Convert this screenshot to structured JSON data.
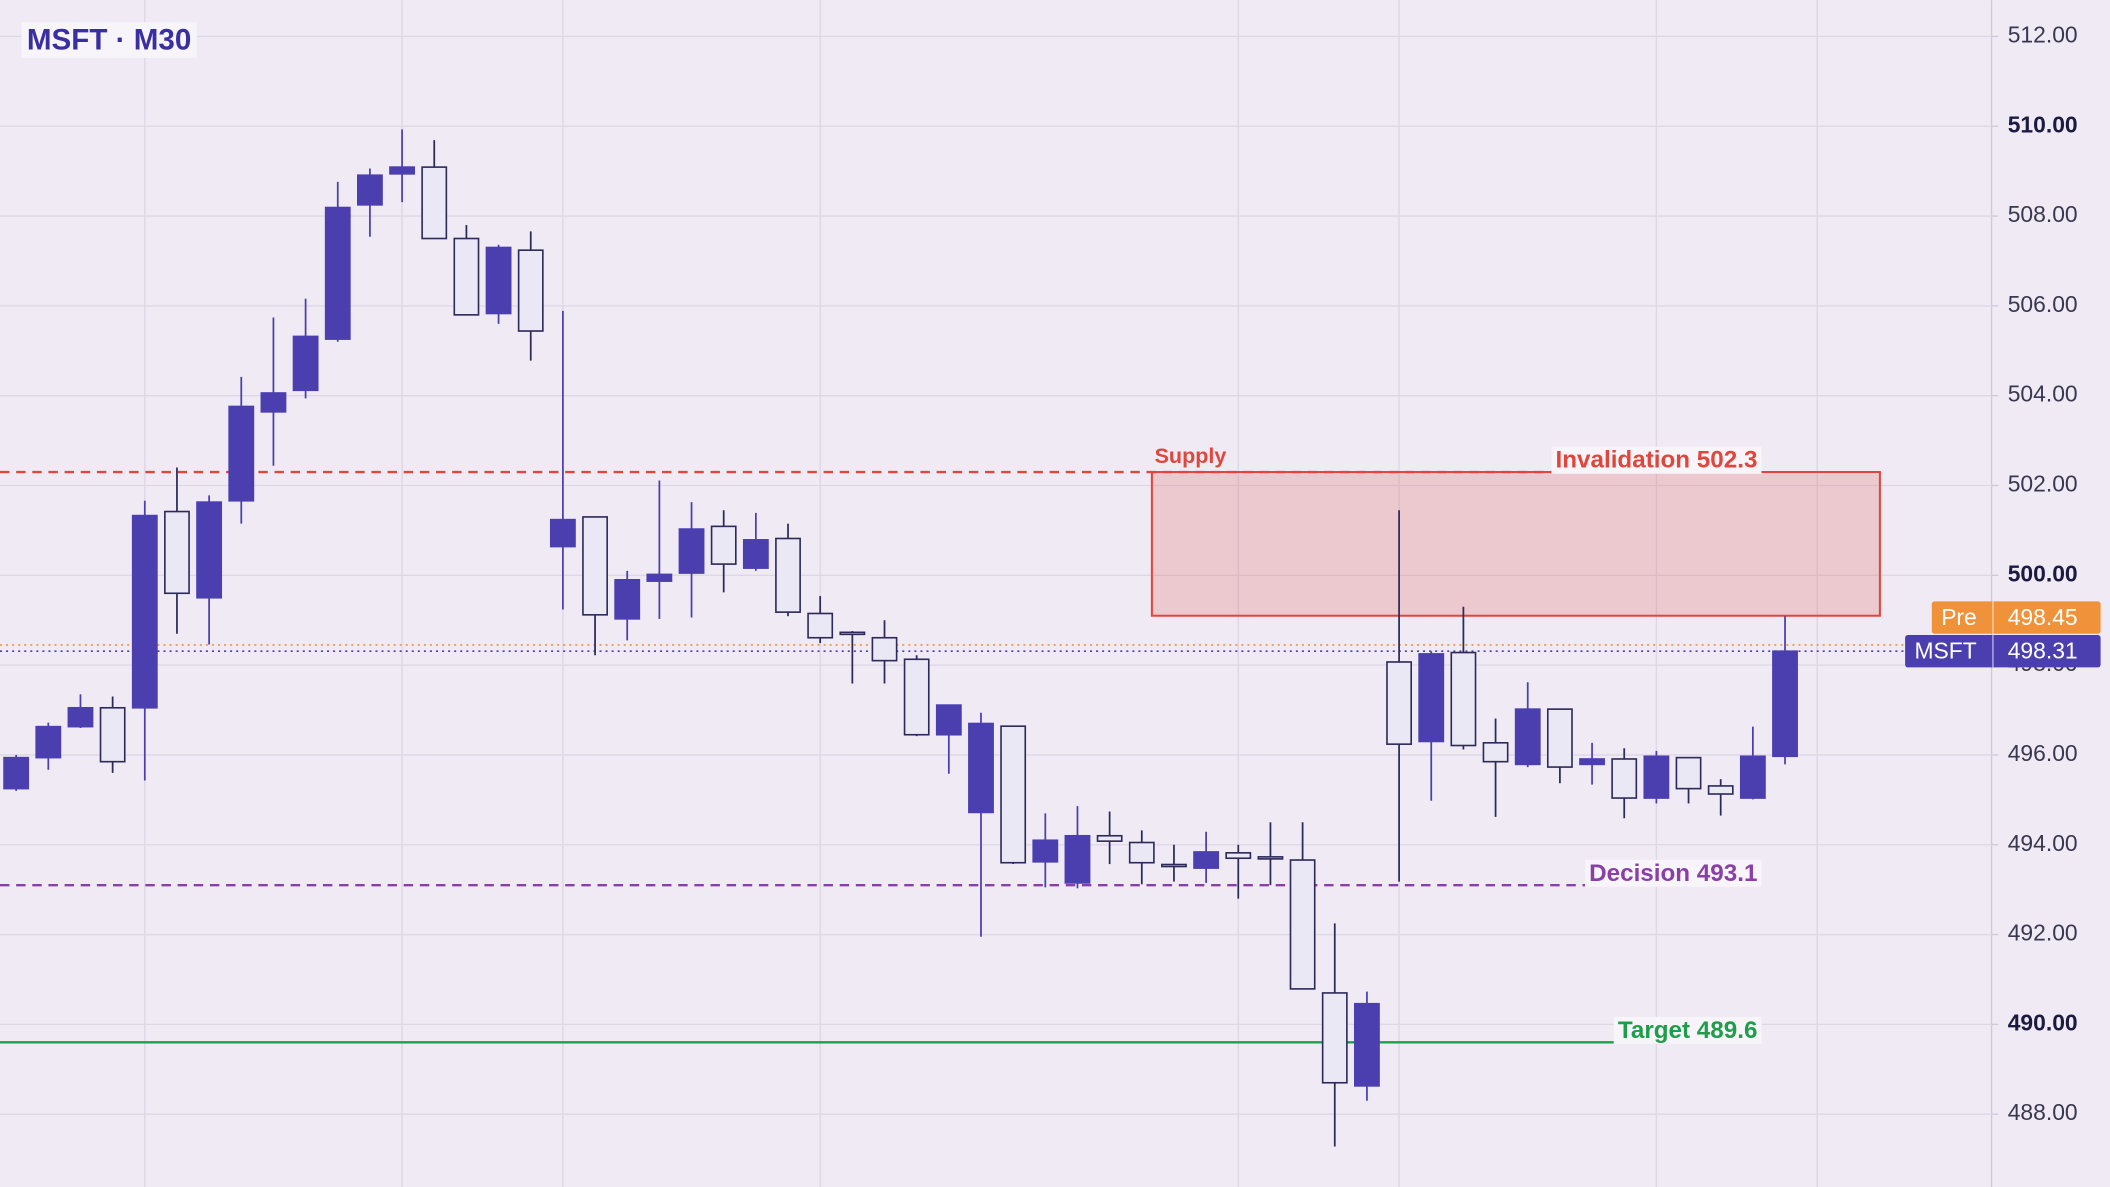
{
  "chart_data": {
    "type": "candlestick",
    "title": "MSFT · M30",
    "candle_up_color": "#4b3fb0",
    "candle_down_color": "#ebe8f5",
    "open": [
      495.25,
      495.94,
      496.63,
      497.05,
      497.05,
      501.42,
      499.5,
      501.66,
      503.64,
      504.12,
      505.26,
      508.25,
      508.94,
      509.09,
      507.5,
      505.83,
      507.24,
      500.64,
      501.3,
      499.03,
      499.87,
      500.05,
      501.09,
      500.16,
      500.82,
      499.15,
      498.73,
      498.61,
      498.13,
      496.45,
      494.72,
      496.64,
      493.62,
      493.15,
      494.2,
      494.05,
      493.56,
      493.48,
      493.82,
      493.73,
      493.66,
      490.7,
      488.63,
      498.07,
      496.3,
      498.28,
      496.27,
      495.79,
      497.02,
      495.79,
      495.91,
      495.04,
      495.94,
      495.31,
      495.04,
      495.97
    ],
    "high": [
      496.0,
      496.72,
      497.35,
      497.3,
      501.66,
      502.4,
      501.78,
      504.42,
      505.74,
      506.16,
      508.76,
      509.06,
      509.93,
      509.69,
      507.8,
      507.36,
      507.66,
      505.89,
      501.3,
      500.1,
      502.11,
      501.63,
      501.45,
      501.39,
      501.15,
      499.54,
      498.76,
      499.0,
      498.22,
      497.11,
      496.94,
      496.64,
      494.7,
      494.86,
      494.74,
      494.32,
      494.0,
      494.29,
      494.0,
      494.5,
      494.5,
      492.25,
      490.73,
      501.45,
      498.31,
      499.3,
      496.81,
      497.62,
      497.02,
      496.27,
      496.15,
      496.09,
      495.94,
      495.46,
      496.63,
      499.09
    ],
    "low": [
      495.2,
      495.67,
      496.6,
      495.6,
      495.43,
      498.7,
      498.46,
      501.15,
      502.44,
      503.94,
      505.2,
      507.54,
      508.31,
      507.5,
      505.8,
      505.6,
      504.78,
      499.24,
      498.22,
      498.55,
      499.03,
      499.06,
      499.62,
      500.1,
      499.09,
      498.49,
      497.59,
      497.59,
      496.42,
      495.58,
      491.95,
      493.57,
      493.05,
      493.03,
      493.57,
      493.12,
      493.18,
      493.15,
      492.8,
      493.1,
      490.79,
      487.28,
      488.3,
      493.18,
      494.98,
      496.12,
      494.62,
      495.73,
      495.37,
      495.34,
      494.59,
      494.92,
      494.92,
      494.65,
      495.01,
      495.79
    ],
    "close": [
      495.94,
      496.63,
      497.05,
      495.85,
      501.33,
      499.6,
      501.63,
      503.76,
      504.06,
      505.32,
      508.19,
      508.91,
      509.09,
      507.5,
      505.8,
      507.3,
      505.44,
      501.24,
      499.12,
      499.9,
      500.02,
      501.03,
      500.25,
      500.79,
      499.18,
      498.61,
      498.7,
      498.1,
      496.45,
      497.11,
      496.7,
      493.6,
      494.1,
      494.2,
      494.08,
      493.6,
      493.54,
      493.84,
      493.7,
      493.72,
      490.79,
      488.7,
      490.46,
      496.24,
      498.25,
      496.21,
      495.85,
      497.02,
      495.73,
      495.91,
      495.04,
      495.97,
      495.25,
      495.13,
      495.97,
      498.31
    ],
    "ylim": [
      486.38,
      512.81
    ],
    "yticks": [
      {
        "value": 488,
        "label": "488.00"
      },
      {
        "value": 490,
        "label": "490.00"
      },
      {
        "value": 492,
        "label": "492.00"
      },
      {
        "value": 494,
        "label": "494.00"
      },
      {
        "value": 496,
        "label": "496.00"
      },
      {
        "value": 498,
        "label": "498.00"
      },
      {
        "value": 500,
        "label": "500.00"
      },
      {
        "value": 502,
        "label": "502.00"
      },
      {
        "value": 504,
        "label": "504.00"
      },
      {
        "value": 506,
        "label": "506.00"
      },
      {
        "value": 508,
        "label": "508.00"
      },
      {
        "value": 510,
        "label": "510.00"
      },
      {
        "value": 512,
        "label": "512.00"
      }
    ],
    "grid": true,
    "zone": {
      "label": "Supply",
      "high": 502.3,
      "low": 499.1,
      "color": "#e0463c"
    },
    "levels": [
      {
        "label": "Invalidation 502.3",
        "value": 502.3,
        "color": "#e0463c",
        "style": "dashed"
      },
      {
        "label": "Decision 493.1",
        "value": 493.1,
        "color": "#8a3fa8",
        "style": "dashed"
      },
      {
        "label": "Target 489.6",
        "value": 489.6,
        "color": "#1e9e4a",
        "style": "solid"
      }
    ],
    "price_labels": [
      {
        "name": "Pre",
        "value": 498.45,
        "color": "#f0923a"
      },
      {
        "name": "MSFT",
        "value": 498.31,
        "color": "#4b3fb0"
      }
    ]
  }
}
